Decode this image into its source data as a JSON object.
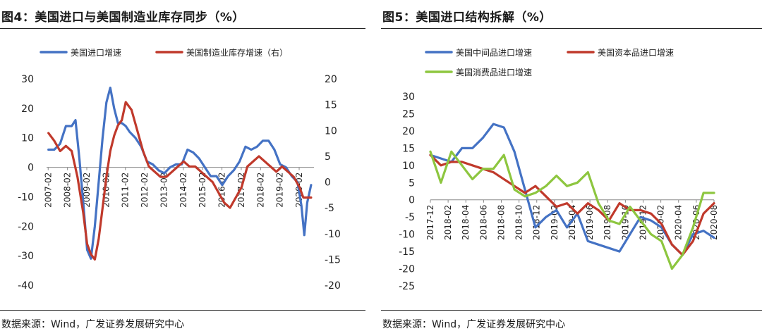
{
  "figures": [
    {
      "title": "图4：美国进口与美国制造业库存同步（%）",
      "source": "数据来源：Wind，广发证券发展研究中心"
    },
    {
      "title": "图5：美国进口结构拆解（%）",
      "source": "数据来源：Wind，广发证券发展研究中心"
    }
  ],
  "chart_data": [
    {
      "type": "line",
      "title": "美国进口与美国制造业库存同步（%）",
      "legend_position": "top-left",
      "x_tick_labels": [
        "2007-02",
        "2008-02",
        "2009-02",
        "2010-02",
        "2011-02",
        "2012-02",
        "2013-02",
        "2014-02",
        "2015-02",
        "2016-02",
        "2017-02",
        "2018-02",
        "2019-02",
        "2020-02"
      ],
      "y_left_ticks": [
        30,
        20,
        10,
        0,
        -10,
        -20,
        -30,
        -40
      ],
      "y_left_range": [
        -40,
        30
      ],
      "y_right_ticks": [
        20,
        15,
        10,
        5,
        0,
        -5,
        -10,
        -15,
        -20
      ],
      "y_right_range": [
        -20,
        20
      ],
      "series": [
        {
          "name": "美国进口增速",
          "axis": "left",
          "color": "#4472c4",
          "x": [
            2007.1,
            2007.4,
            2007.7,
            2008.0,
            2008.3,
            2008.5,
            2008.7,
            2008.9,
            2009.1,
            2009.3,
            2009.5,
            2009.7,
            2009.9,
            2010.1,
            2010.3,
            2010.5,
            2010.7,
            2010.9,
            2011.1,
            2011.3,
            2011.6,
            2011.9,
            2012.2,
            2012.5,
            2012.8,
            2013.1,
            2013.4,
            2013.7,
            2014.0,
            2014.3,
            2014.6,
            2014.9,
            2015.2,
            2015.5,
            2015.8,
            2016.1,
            2016.4,
            2016.7,
            2017.0,
            2017.3,
            2017.6,
            2017.9,
            2018.2,
            2018.5,
            2018.8,
            2019.1,
            2019.4,
            2019.7,
            2020.0,
            2020.2,
            2020.35,
            2020.5,
            2020.7
          ],
          "y": [
            6,
            6,
            8,
            14,
            14,
            16,
            3,
            -12,
            -28,
            -31,
            -20,
            -5,
            10,
            22,
            27,
            20,
            15,
            15,
            14,
            12,
            10,
            7,
            2,
            1,
            -1,
            -2,
            0,
            1,
            1,
            6,
            5,
            3,
            0,
            -3,
            -3,
            -6,
            -3,
            -1,
            2,
            7,
            6,
            7,
            9,
            9,
            6,
            1,
            0,
            -3,
            -5,
            -13,
            -23,
            -12,
            -6
          ]
        },
        {
          "name": "美国制造业库存增速（右）",
          "axis": "right",
          "color": "#c0392b",
          "x": [
            2007.1,
            2007.4,
            2007.7,
            2008.0,
            2008.3,
            2008.6,
            2008.9,
            2009.1,
            2009.3,
            2009.5,
            2009.7,
            2009.9,
            2010.1,
            2010.3,
            2010.5,
            2010.7,
            2010.9,
            2011.1,
            2011.4,
            2011.7,
            2012.0,
            2012.3,
            2012.6,
            2012.9,
            2013.2,
            2013.5,
            2013.8,
            2014.1,
            2014.4,
            2014.7,
            2015.0,
            2015.3,
            2015.6,
            2015.9,
            2016.2,
            2016.5,
            2016.8,
            2017.1,
            2017.4,
            2017.7,
            2018.0,
            2018.3,
            2018.6,
            2018.9,
            2019.2,
            2019.5,
            2019.8,
            2020.1,
            2020.3,
            2020.5,
            2020.7
          ],
          "y": [
            9.5,
            8,
            6,
            7,
            6,
            1,
            -6,
            -12,
            -14,
            -15,
            -11,
            -5,
            1,
            6,
            9,
            11,
            12,
            15.5,
            14,
            10,
            6,
            3,
            2,
            1,
            1,
            2,
            3,
            4,
            3,
            3,
            2,
            1,
            0,
            -2,
            -4,
            -5,
            -3,
            -1,
            3,
            4,
            5,
            4,
            3,
            2,
            3,
            2,
            1,
            -1,
            -3,
            -3,
            -3
          ]
        }
      ]
    },
    {
      "type": "line",
      "title": "美国进口结构拆解（%）",
      "legend_position": "top-left",
      "x_tick_labels": [
        "2017-12",
        "2018-02",
        "2018-04",
        "2018-06",
        "2018-08",
        "2018-10",
        "2018-12",
        "2019-02",
        "2019-04",
        "2019-06",
        "2019-08",
        "2019-10",
        "2019-12",
        "2020-02",
        "2020-04",
        "2020-06",
        "2020-08"
      ],
      "y_ticks": [
        30,
        25,
        20,
        15,
        10,
        5,
        0,
        -5,
        -10,
        -15,
        -20,
        -25
      ],
      "y_range": [
        -25,
        30
      ],
      "series": [
        {
          "name": "美国中间品进口增速",
          "color": "#4472c4",
          "values": [
            13,
            12,
            11,
            15,
            15,
            18,
            22,
            21,
            14,
            3,
            -8,
            -5,
            -3,
            -8,
            -4,
            -12,
            -13,
            -14,
            -15,
            -10,
            -5,
            -6,
            -8,
            -13,
            -16,
            -10,
            -9,
            -11
          ]
        },
        {
          "name": "美国资本品进口增速",
          "color": "#c0392b",
          "values": [
            13,
            10,
            11,
            11,
            10,
            9,
            8,
            6,
            4,
            2,
            4,
            1,
            -2,
            -1,
            -4,
            -1,
            -3,
            -6,
            -1,
            -3,
            -3,
            -4,
            -7,
            -13,
            -16,
            -12,
            -4,
            -1
          ]
        },
        {
          "name": "美国消费品进口增速",
          "color": "#8dc63f",
          "values": [
            14,
            5,
            14,
            10,
            6,
            9,
            9,
            13,
            3,
            1,
            2,
            4,
            7,
            4,
            5,
            8,
            -1,
            -6,
            -7,
            -2,
            -6,
            -10,
            -12,
            -20,
            -16,
            -8,
            2,
            2
          ]
        }
      ]
    }
  ]
}
